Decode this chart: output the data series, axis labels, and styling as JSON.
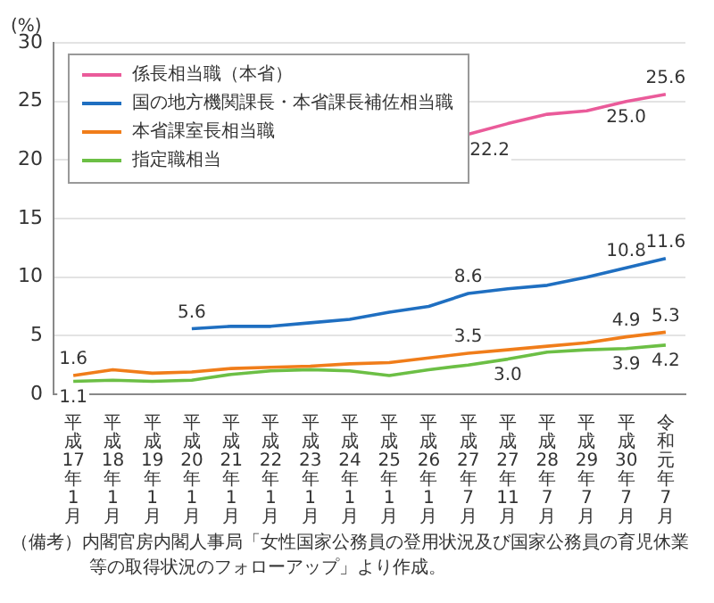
{
  "chart_data": {
    "type": "line",
    "ylabel": "(%)",
    "categories": [
      "平成17年1月",
      "平成18年1月",
      "平成19年1月",
      "平成20年1月",
      "平成21年1月",
      "平成22年1月",
      "平成23年1月",
      "平成24年1月",
      "平成25年1月",
      "平成26年1月",
      "平成27年7月",
      "平成27年11月",
      "平成28年7月",
      "平成29年7月",
      "平成30年7月",
      "令和元年7月"
    ],
    "series": [
      {
        "name": "係長相当職（本省）",
        "color": "#ea5b9a",
        "values": [
          null,
          null,
          null,
          null,
          null,
          null,
          null,
          null,
          null,
          null,
          22.2,
          23.1,
          23.9,
          24.2,
          25.0,
          25.6
        ],
        "value_labels": [
          null,
          null,
          null,
          null,
          null,
          null,
          null,
          null,
          null,
          null,
          "22.2",
          null,
          null,
          null,
          "25.0",
          "25.6"
        ]
      },
      {
        "name": "国の地方機関課長・本省課長補佐相当職",
        "color": "#1f6fc1",
        "values": [
          null,
          null,
          null,
          5.6,
          5.8,
          5.8,
          6.1,
          6.4,
          7.0,
          7.5,
          8.6,
          9.0,
          9.3,
          10.0,
          10.8,
          11.6
        ],
        "value_labels": [
          null,
          null,
          null,
          "5.6",
          null,
          null,
          null,
          null,
          null,
          null,
          "8.6",
          null,
          null,
          null,
          "10.8",
          "11.6"
        ]
      },
      {
        "name": "本省課室長相当職",
        "color": "#f07d1a",
        "values": [
          1.6,
          2.1,
          1.8,
          1.9,
          2.2,
          2.3,
          2.4,
          2.6,
          2.7,
          3.1,
          3.5,
          3.8,
          4.1,
          4.4,
          4.9,
          5.3
        ],
        "value_labels": [
          "1.6",
          null,
          null,
          null,
          null,
          null,
          null,
          null,
          null,
          null,
          "3.5",
          null,
          null,
          null,
          "4.9",
          "5.3"
        ]
      },
      {
        "name": "指定職相当",
        "color": "#6cbf45",
        "values": [
          1.1,
          1.2,
          1.1,
          1.2,
          1.7,
          2.0,
          2.1,
          2.0,
          1.6,
          2.1,
          2.5,
          3.0,
          3.6,
          3.8,
          3.9,
          4.2
        ],
        "value_labels": [
          "1.1",
          null,
          null,
          null,
          null,
          null,
          null,
          null,
          null,
          null,
          null,
          "3.0",
          null,
          null,
          "3.9",
          "4.2"
        ]
      }
    ],
    "ylim": [
      0,
      30
    ],
    "yticks": [
      0,
      5,
      10,
      15,
      20,
      25,
      30
    ],
    "grid": "y",
    "legend": "top left",
    "marker": "none",
    "line_style": "solid",
    "annotations": [
      "（備考）内閣官房内閣人事局「女性国家公務員の登用状況及び国家公務員の育児休業等の取得状況のフォローアップ」より作成。"
    ]
  }
}
